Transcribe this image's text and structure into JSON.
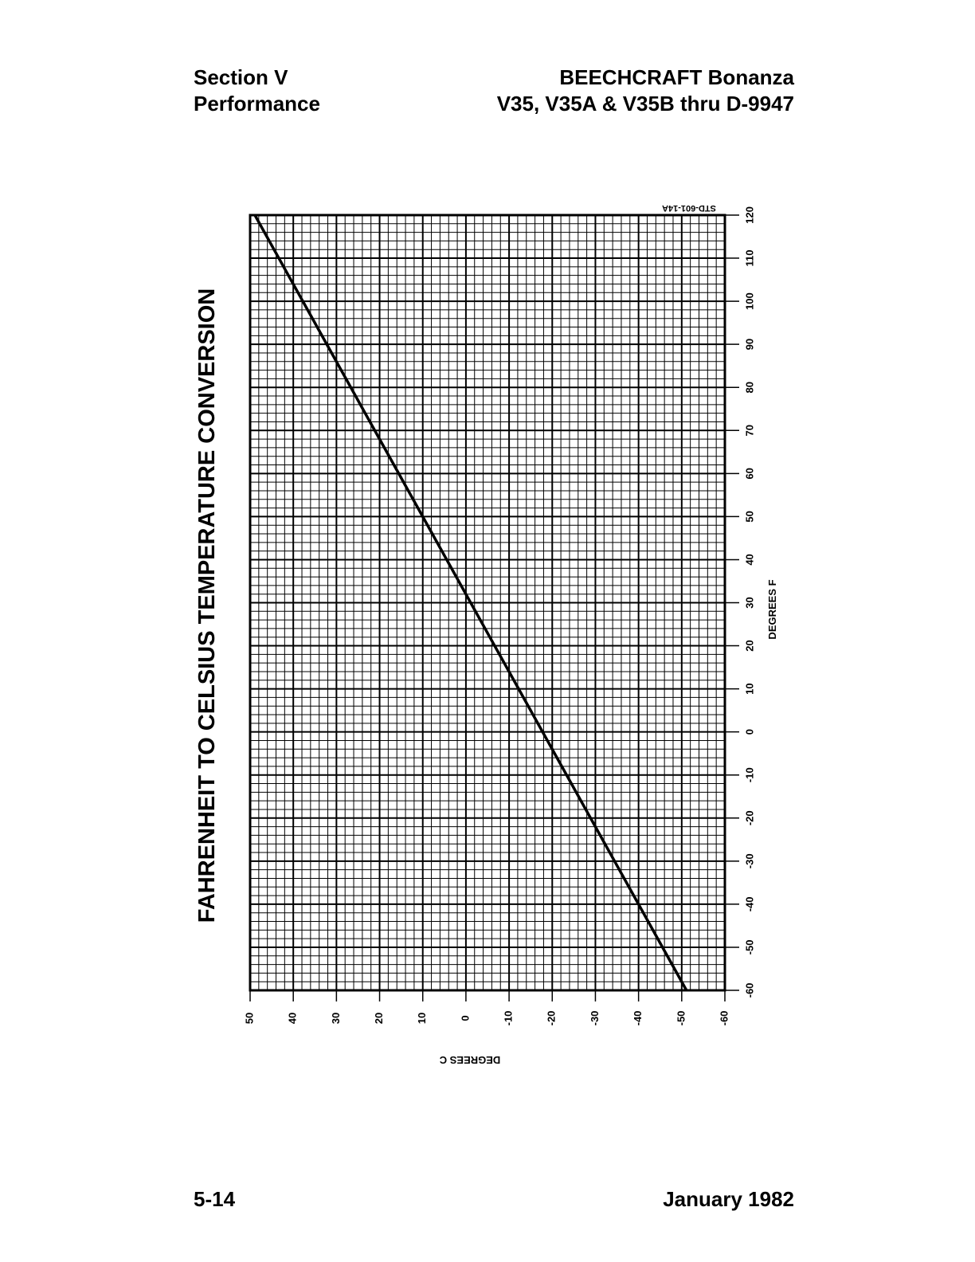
{
  "header": {
    "section": "Section V",
    "subsection": "Performance",
    "aircraft": "BEECHCRAFT Bonanza",
    "models": "V35, V35A & V35B thru D-9947"
  },
  "footer": {
    "page": "5-14",
    "date": "January 1982"
  },
  "chart_data": {
    "type": "line",
    "title": "FAHRENHEIT TO CELSIUS TEMPERATURE CONVERSION",
    "xlabel": "DEGREES C",
    "ylabel": "DEGREES F",
    "annotation": "STD-601-14A",
    "x": [
      48.9,
      -51.1
    ],
    "values": [
      120,
      -60
    ],
    "color": "#000000",
    "xlim": [
      50,
      -60
    ],
    "xticks": [
      50,
      40,
      30,
      20,
      10,
      0,
      -10,
      -20,
      -30,
      -40,
      -50,
      -60
    ],
    "ylim": [
      -60,
      120
    ],
    "yticks": [
      -60,
      -50,
      -40,
      -30,
      -20,
      -10,
      0,
      10,
      20,
      30,
      40,
      50,
      60,
      70,
      80,
      90,
      100,
      110,
      120
    ],
    "grid": true
  }
}
